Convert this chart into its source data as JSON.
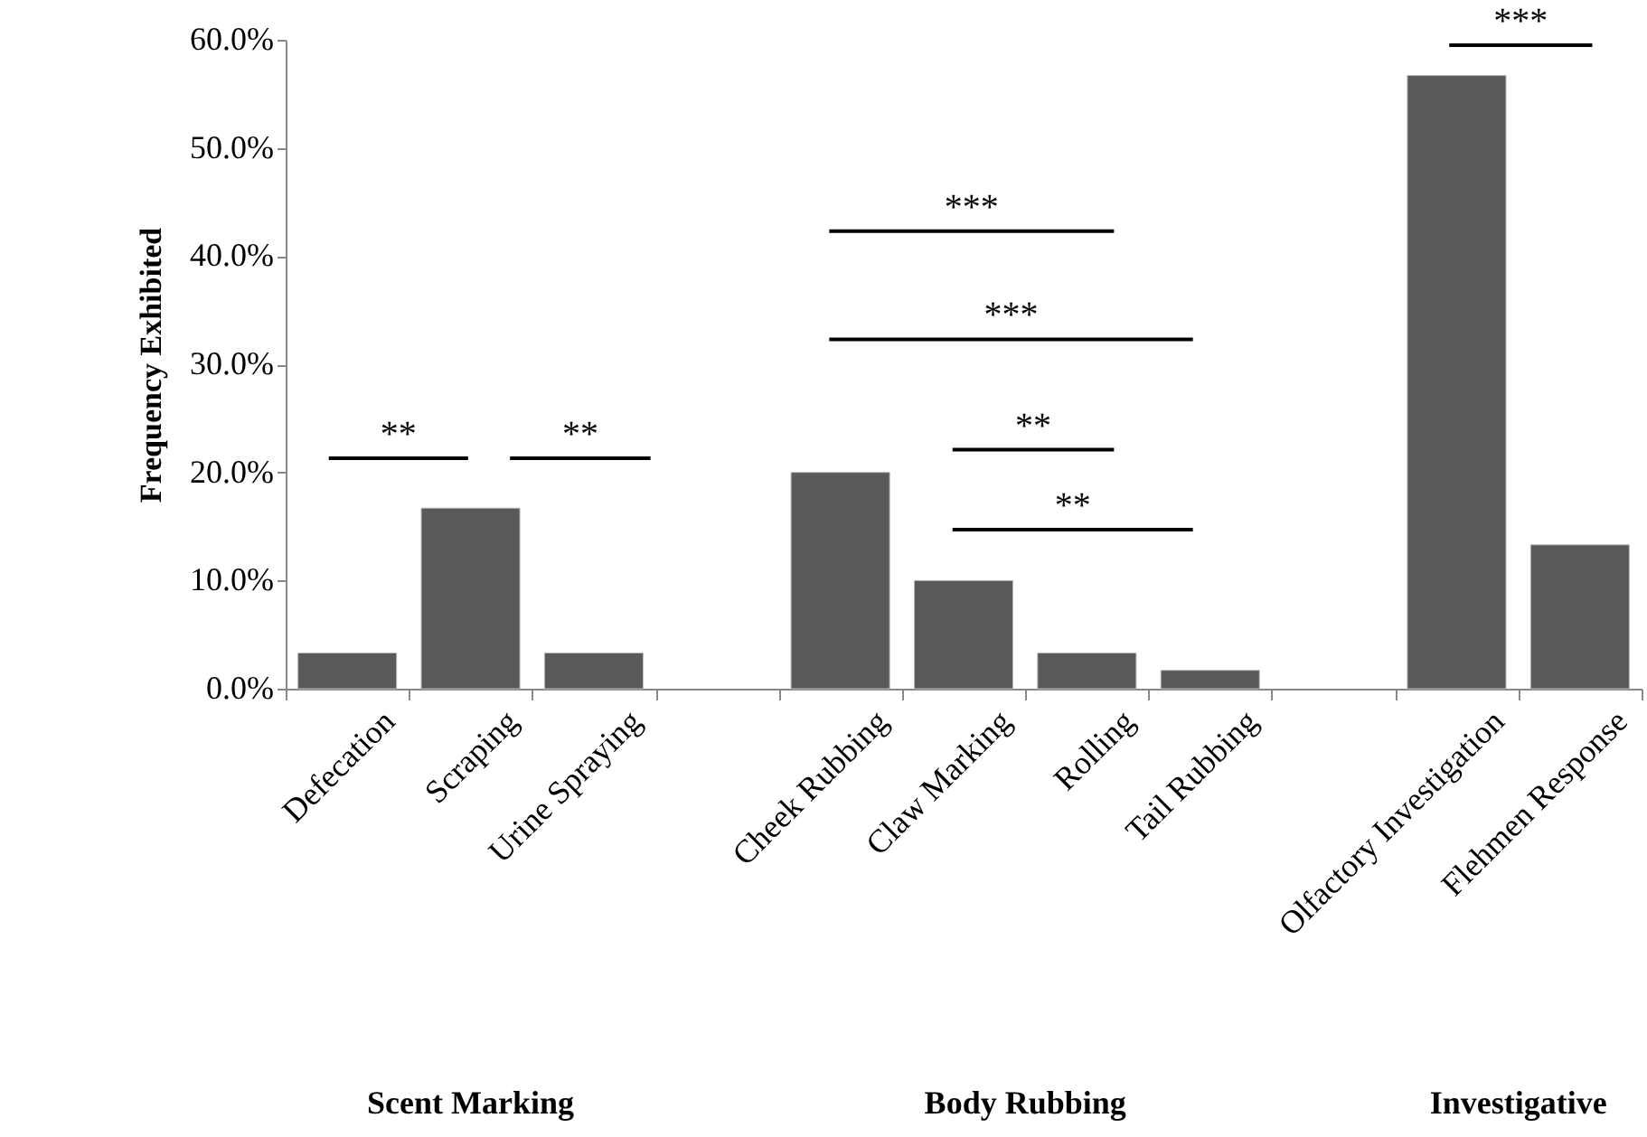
{
  "chart_data": {
    "type": "bar",
    "ylabel": "Frequency Exhibited",
    "categories": [
      "Defecation",
      "Scraping",
      "Urine Spraying",
      null,
      "Cheek Rubbing",
      "Claw Marking",
      "Rolling",
      "Tail Rubbing",
      null,
      "Olfactory Investigation",
      "Flehmen Response"
    ],
    "values": [
      3.3,
      16.7,
      3.3,
      null,
      20.0,
      10.0,
      3.3,
      1.7,
      null,
      56.7,
      13.3
    ],
    "color": "#595959",
    "ylim": [
      0,
      60
    ],
    "yticks": [
      {
        "value": 0,
        "label": "0.0%"
      },
      {
        "value": 10,
        "label": "10.0%"
      },
      {
        "value": 20,
        "label": "20.0%"
      },
      {
        "value": 30,
        "label": "30.0%"
      },
      {
        "value": 40,
        "label": "40.0%"
      },
      {
        "value": 50,
        "label": "50.0%"
      },
      {
        "value": 60,
        "label": "60.0%"
      }
    ],
    "grid": false,
    "annotations": [
      "Scent Marking",
      "Body Rubbing",
      "Investigative",
      "**",
      "**",
      "***",
      "***",
      "**",
      "**",
      "***"
    ]
  }
}
